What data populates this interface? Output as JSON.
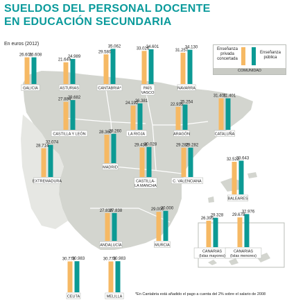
{
  "title_line1": "SUELDOS DEL PERSONAL DOCENTE",
  "title_line2": "EN EDUCACIÓN SECUNDARIA",
  "unit_note": "En euros (2012)",
  "footnote": "*En Cantabria está añadido el pago a cuenta del 2% sobre el salario de 2008",
  "legend": {
    "private_label": "Enseñanza privada concertada",
    "public_label": "Enseñanza pública",
    "group_label": "COMUNIDAD"
  },
  "colors": {
    "private": "#f6b964",
    "public": "#0c9a94",
    "map_land": "#d3d5cf",
    "map_border": "#ffffff",
    "title": "#0a9a9b",
    "label_bg": "#ffffff",
    "label_border": "#b9bcb7"
  },
  "chart_data": {
    "type": "bar",
    "title": "SUELDOS DEL PERSONAL DOCENTE EN EDUCACIÓN SECUNDARIA",
    "unit": "En euros (2012)",
    "series": [
      {
        "name": "Enseñanza privada concertada",
        "values": [
          26601,
          21649,
          29580,
          33026,
          31257,
          27884,
          24192,
          22935,
          31401,
          28369,
          28714,
          29436,
          29282,
          32522,
          27838,
          29000,
          26395,
          29678,
          30778,
          30778
        ]
      },
      {
        "name": "Enseñanza pública",
        "values": [
          26608,
          24989,
          35062,
          34601,
          34130,
          29682,
          26381,
          25254,
          31401,
          29260,
          32074,
          30028,
          29282,
          33643,
          27838,
          30000,
          29328,
          32976,
          30983,
          30983
        ]
      }
    ],
    "categories": [
      "GALICIA",
      "ASTURIAS",
      "CANTABRIA*",
      "PAÍS VASCO",
      "NAVARRA",
      "CASTILLA Y LEÓN",
      "LA RIOJA",
      "ARAGÓN",
      "CATALUÑA",
      "MADRID",
      "EXTREMADURA",
      "CASTILLA-LA MANCHA",
      "C. VALENCIANA",
      "BALEARES",
      "ANDALUCÍA",
      "MURCIA",
      "CANARIAS (Islas mayores)",
      "CANARIAS (Islas menores)",
      "CEUTA",
      "MELILLA"
    ],
    "value_labels": {
      "private": [
        "26.601",
        "21.649",
        "29.580",
        "33.026",
        "31.257",
        "27.884",
        "24.192",
        "22.935",
        "31.401",
        "28.369",
        "28.714",
        "29.436",
        "29.282",
        "32.522",
        "27.838",
        "29.000",
        "26.395",
        "29.678",
        "30.778",
        "30.778"
      ],
      "public": [
        "26.608",
        "24.989",
        "35.062",
        "34.601",
        "34.130",
        "29.682",
        "26.381",
        "25.254",
        "31.401",
        "29.260",
        "32.074",
        "30.028",
        "29.282",
        "33.643",
        "27.838",
        "30.000",
        "29.328",
        "32.976",
        "30.983",
        "30.983"
      ]
    },
    "region_labels": [
      "GALICIA",
      "ASTURIAS",
      "CANTABRIA*",
      "PAÍS\nVASCO",
      "NAVARRA",
      "CASTILLA Y LEÓN",
      "LA RIOJA",
      "ARAGÓN",
      "CATALUÑA",
      "MADRID",
      "EXTREMADURA",
      "CASTILLA-\nLA MANCHA",
      "C. VALENCIANA",
      "BALEARES",
      "ANDALUCÍA",
      "MURCIA",
      "CANARIAS\n(Islas mayores)",
      "CANARIAS\n(Islas menores)",
      "CEUTA",
      "MELILLA"
    ]
  }
}
